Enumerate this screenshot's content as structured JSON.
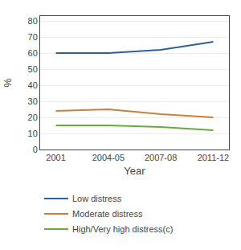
{
  "chart_data": {
    "type": "line",
    "x_label": "Year",
    "y_label": "%",
    "categories": [
      "2001",
      "2004-05",
      "2007-08",
      "2011-12"
    ],
    "series": [
      {
        "name": "Low distress",
        "color": "#2e5f9e",
        "values": [
          60,
          60,
          62,
          67
        ]
      },
      {
        "name": "Moderate distress",
        "color": "#c8803a",
        "values": [
          24,
          25,
          22,
          20
        ]
      },
      {
        "name": "High/Very high distress(c)",
        "color": "#6aaa3a",
        "values": [
          15,
          15,
          14,
          12
        ]
      }
    ],
    "ylim": [
      0,
      83
    ],
    "yticks": [
      0,
      10,
      20,
      30,
      40,
      50,
      60,
      70,
      80
    ],
    "grid": true,
    "legend": "bottom"
  }
}
